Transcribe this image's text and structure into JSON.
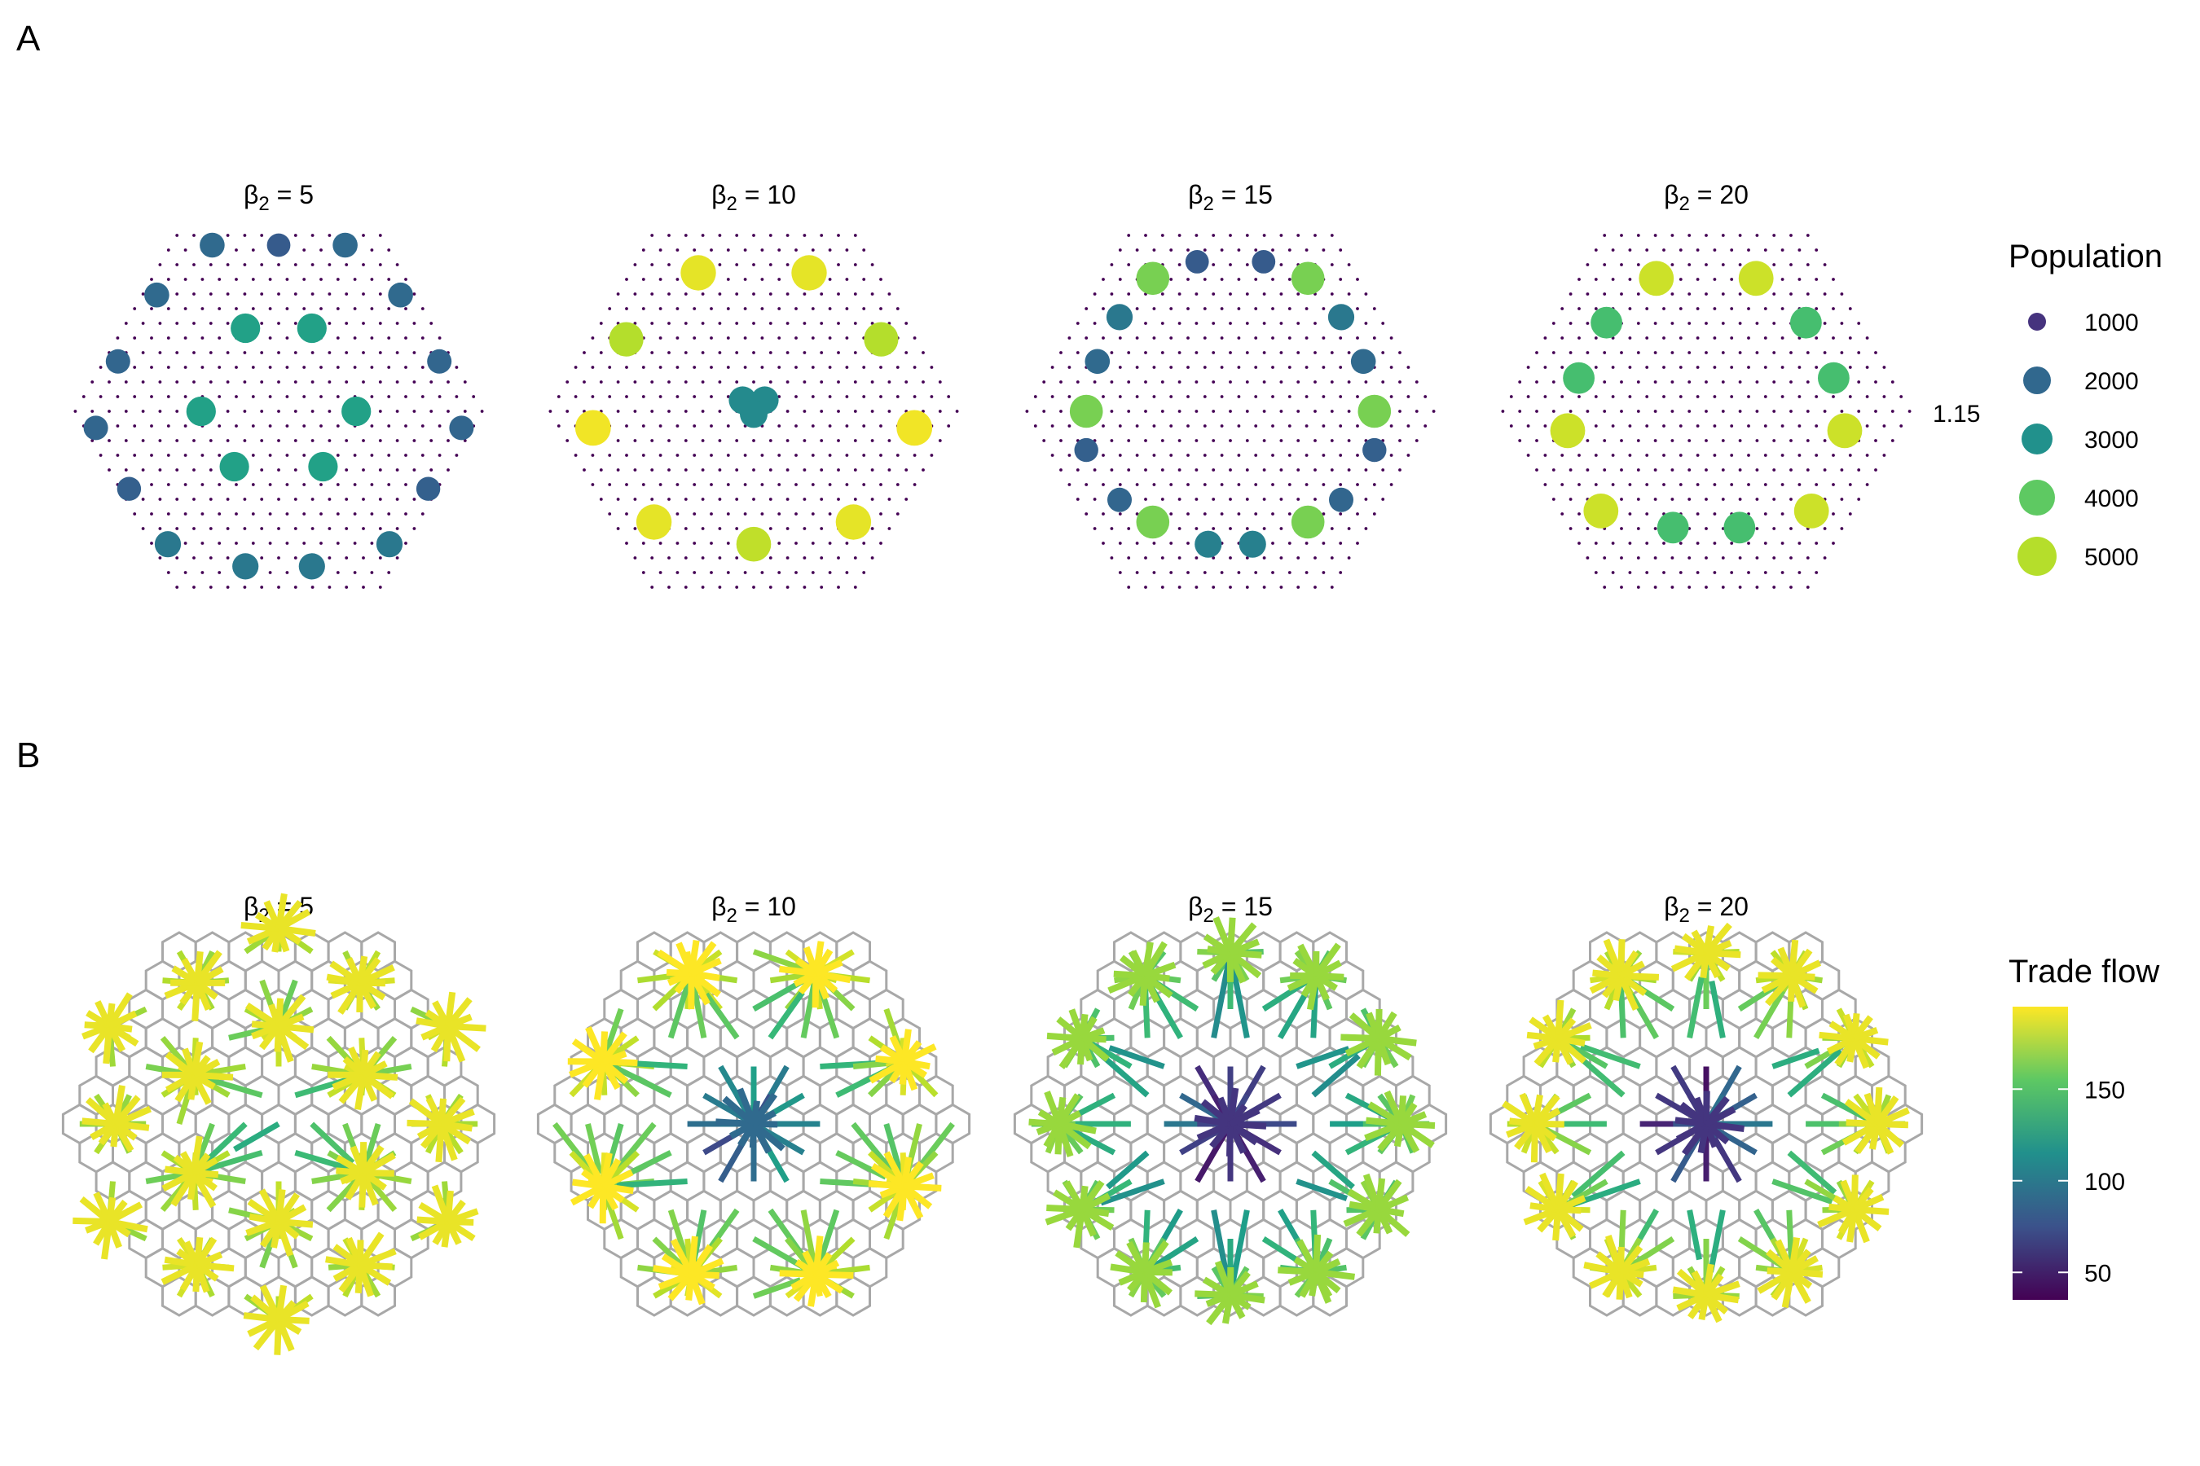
{
  "panels": {
    "a_label": "A",
    "b_label": "B"
  },
  "facet_prefix": "β",
  "facet_subscript": "2",
  "facet_eq": " = ",
  "facets": [
    "5",
    "10",
    "15",
    "20"
  ],
  "stray_label": "1.15",
  "chart_data": [
    {
      "type": "scatter",
      "panel": "A",
      "description_kind": "population of settlements on a hexagonal lattice",
      "colors": {
        "viridis": [
          "#440154",
          "#3b528b",
          "#21908c",
          "#5dc863",
          "#fde725"
        ],
        "lattice_dot": "#440154"
      },
      "legend": {
        "title": "Population",
        "entries": [
          {
            "label": "1000",
            "value": 1000,
            "color": "#46337e"
          },
          {
            "label": "2000",
            "value": 2000,
            "color": "#31688e"
          },
          {
            "label": "3000",
            "value": 3000,
            "color": "#21918c"
          },
          {
            "label": "4000",
            "value": 4000,
            "color": "#5ec962"
          },
          {
            "label": "5000",
            "value": 5000,
            "color": "#b5de2b"
          }
        ]
      },
      "facets": [
        {
          "beta2": 5,
          "cities": [
            {
              "x": -1.2,
              "y": 3.0,
              "pop": 2300
            },
            {
              "x": 0.0,
              "y": 3.0,
              "pop": 2000
            },
            {
              "x": 1.2,
              "y": 3.0,
              "pop": 2300
            },
            {
              "x": -2.2,
              "y": 2.1,
              "pop": 2300
            },
            {
              "x": 2.2,
              "y": 2.1,
              "pop": 2300
            },
            {
              "x": -0.6,
              "y": 1.5,
              "pop": 3500
            },
            {
              "x": 0.6,
              "y": 1.5,
              "pop": 3500
            },
            {
              "x": -2.9,
              "y": 0.9,
              "pop": 2200
            },
            {
              "x": 2.9,
              "y": 0.9,
              "pop": 2200
            },
            {
              "x": -1.4,
              "y": 0.0,
              "pop": 3500
            },
            {
              "x": 1.4,
              "y": 0.0,
              "pop": 3500
            },
            {
              "x": -3.3,
              "y": -0.3,
              "pop": 2200
            },
            {
              "x": 3.3,
              "y": -0.3,
              "pop": 2200
            },
            {
              "x": -0.8,
              "y": -1.0,
              "pop": 3500
            },
            {
              "x": 0.8,
              "y": -1.0,
              "pop": 3500
            },
            {
              "x": -2.7,
              "y": -1.4,
              "pop": 2100
            },
            {
              "x": 2.7,
              "y": -1.4,
              "pop": 2100
            },
            {
              "x": -2.0,
              "y": -2.4,
              "pop": 2600
            },
            {
              "x": 2.0,
              "y": -2.4,
              "pop": 2600
            },
            {
              "x": -0.6,
              "y": -2.8,
              "pop": 2600
            },
            {
              "x": 0.6,
              "y": -2.8,
              "pop": 2600
            }
          ]
        },
        {
          "beta2": 10,
          "cities": [
            {
              "x": -1.0,
              "y": 2.5,
              "pop": 5600
            },
            {
              "x": 1.0,
              "y": 2.5,
              "pop": 5600
            },
            {
              "x": -2.3,
              "y": 1.3,
              "pop": 5200
            },
            {
              "x": 2.3,
              "y": 1.3,
              "pop": 5200
            },
            {
              "x": -0.2,
              "y": 0.2,
              "pop": 3000
            },
            {
              "x": 0.2,
              "y": 0.2,
              "pop": 3000
            },
            {
              "x": 0.0,
              "y": -0.05,
              "pop": 3000
            },
            {
              "x": -2.9,
              "y": -0.3,
              "pop": 5700
            },
            {
              "x": 2.9,
              "y": -0.3,
              "pop": 5700
            },
            {
              "x": -1.8,
              "y": -2.0,
              "pop": 5600
            },
            {
              "x": 1.8,
              "y": -2.0,
              "pop": 5600
            },
            {
              "x": 0.0,
              "y": -2.4,
              "pop": 5300
            }
          ]
        },
        {
          "beta2": 15,
          "cities": [
            {
              "x": -0.6,
              "y": 2.7,
              "pop": 2000
            },
            {
              "x": 0.6,
              "y": 2.7,
              "pop": 2000
            },
            {
              "x": -1.4,
              "y": 2.4,
              "pop": 4700
            },
            {
              "x": 1.4,
              "y": 2.4,
              "pop": 4700
            },
            {
              "x": -2.0,
              "y": 1.7,
              "pop": 2600
            },
            {
              "x": 2.0,
              "y": 1.7,
              "pop": 2600
            },
            {
              "x": -2.4,
              "y": 0.9,
              "pop": 2300
            },
            {
              "x": 2.4,
              "y": 0.9,
              "pop": 2300
            },
            {
              "x": -2.6,
              "y": 0.0,
              "pop": 4700
            },
            {
              "x": 2.6,
              "y": 0.0,
              "pop": 4700
            },
            {
              "x": -2.6,
              "y": -0.7,
              "pop": 2100
            },
            {
              "x": 2.6,
              "y": -0.7,
              "pop": 2100
            },
            {
              "x": -2.0,
              "y": -1.6,
              "pop": 2200
            },
            {
              "x": 2.0,
              "y": -1.6,
              "pop": 2200
            },
            {
              "x": -1.4,
              "y": -2.0,
              "pop": 4700
            },
            {
              "x": 1.4,
              "y": -2.0,
              "pop": 4700
            },
            {
              "x": -0.4,
              "y": -2.4,
              "pop": 2800
            },
            {
              "x": 0.4,
              "y": -2.4,
              "pop": 2800
            }
          ]
        },
        {
          "beta2": 20,
          "cities": [
            {
              "x": -0.9,
              "y": 2.4,
              "pop": 5400
            },
            {
              "x": 0.9,
              "y": 2.4,
              "pop": 5400
            },
            {
              "x": -1.8,
              "y": 1.6,
              "pop": 4200
            },
            {
              "x": 1.8,
              "y": 1.6,
              "pop": 4200
            },
            {
              "x": -2.3,
              "y": 0.6,
              "pop": 4200
            },
            {
              "x": 2.3,
              "y": 0.6,
              "pop": 4200
            },
            {
              "x": -2.5,
              "y": -0.35,
              "pop": 5400
            },
            {
              "x": 2.5,
              "y": -0.35,
              "pop": 5400
            },
            {
              "x": -1.9,
              "y": -1.8,
              "pop": 5400
            },
            {
              "x": 1.9,
              "y": -1.8,
              "pop": 5400
            },
            {
              "x": -0.6,
              "y": -2.1,
              "pop": 4200
            },
            {
              "x": 0.6,
              "y": -2.1,
              "pop": 4200
            }
          ]
        }
      ]
    },
    {
      "type": "heatmap",
      "panel": "B",
      "description_kind": "trade flow network on hexagonal cell grid",
      "colors": {
        "cell_outline": "#a8a8a8",
        "viridis": [
          "#440154",
          "#3b528b",
          "#21908c",
          "#5dc863",
          "#fde725"
        ]
      },
      "legend": {
        "title": "Trade flow",
        "breaks": [
          50,
          100,
          150
        ],
        "labels": [
          "50",
          "100",
          "150"
        ],
        "range": [
          35,
          195
        ]
      },
      "facets": [
        {
          "beta2": 5,
          "hub_flow": 190,
          "core_flow": 60,
          "pattern": "many-hubs"
        },
        {
          "beta2": 10,
          "hub_flow": 195,
          "core_flow": 70,
          "pattern": "ring-hubs-center"
        },
        {
          "beta2": 15,
          "hub_flow": 170,
          "core_flow": 40,
          "pattern": "radial-spokes"
        },
        {
          "beta2": 20,
          "hub_flow": 190,
          "core_flow": 40,
          "pattern": "radial-spokes-hubs"
        }
      ]
    }
  ]
}
